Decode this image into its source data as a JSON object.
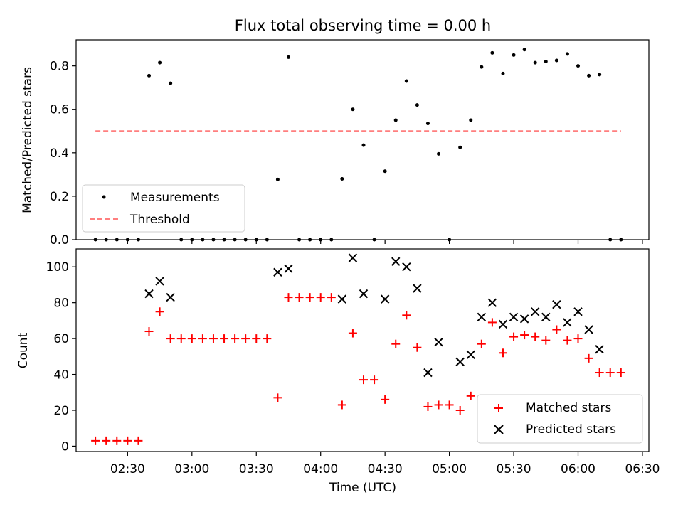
{
  "figure_title": "Flux total observing time = 0.00 h",
  "x_tick_labels": [
    "02:30",
    "03:00",
    "03:30",
    "04:00",
    "04:30",
    "05:00",
    "05:30",
    "06:00",
    "06:30"
  ],
  "chart_data": [
    {
      "type": "scatter",
      "title": "Flux total observing time = 0.00 h",
      "xlabel": "",
      "ylabel": "Matched/Predicted stars",
      "xlim": [
        "02:06",
        "06:33"
      ],
      "ylim": [
        0,
        0.92
      ],
      "yticks": [
        "0.0",
        "0.2",
        "0.4",
        "0.6",
        "0.8"
      ],
      "legend_position": "lower-left",
      "series": [
        {
          "name": "Measurements",
          "kind": "scatter",
          "color": "#000000",
          "x": [
            "02:15",
            "02:20",
            "02:25",
            "02:30",
            "02:35",
            "02:40",
            "02:45",
            "02:50",
            "02:55",
            "03:00",
            "03:05",
            "03:10",
            "03:15",
            "03:20",
            "03:25",
            "03:30",
            "03:35",
            "03:40",
            "03:45",
            "03:50",
            "03:55",
            "04:00",
            "04:05",
            "04:10",
            "04:15",
            "04:20",
            "04:25",
            "04:30",
            "04:35",
            "04:40",
            "04:45",
            "04:50",
            "04:55",
            "05:00",
            "05:05",
            "05:10",
            "05:15",
            "05:20",
            "05:25",
            "05:30",
            "05:35",
            "05:40",
            "05:45",
            "05:50",
            "05:55",
            "06:00",
            "06:05",
            "06:10",
            "06:15",
            "06:20"
          ],
          "y": [
            0,
            0,
            0,
            0,
            0,
            0.755,
            0.815,
            0.72,
            0,
            0,
            0,
            0,
            0,
            0,
            0,
            0,
            0,
            0.277,
            0.84,
            0,
            0,
            0,
            0,
            0.28,
            0.6,
            0.435,
            0,
            0.315,
            0.55,
            0.73,
            0.62,
            0.535,
            0.395,
            0,
            0.425,
            0.55,
            0.795,
            0.86,
            0.765,
            0.85,
            0.875,
            0.815,
            0.82,
            0.825,
            0.855,
            0.8,
            0.755,
            0.76,
            0,
            0
          ]
        },
        {
          "name": "Threshold",
          "kind": "line",
          "style": "dashed",
          "color": "#ff7f7f",
          "x": [
            "02:15",
            "06:20"
          ],
          "y": [
            0.5,
            0.5
          ]
        }
      ]
    },
    {
      "type": "scatter",
      "xlabel": "Time (UTC)",
      "ylabel": "Count",
      "xlim": [
        "02:06",
        "06:33"
      ],
      "ylim": [
        -3,
        110
      ],
      "yticks": [
        "0",
        "20",
        "40",
        "60",
        "80",
        "100"
      ],
      "xticks": [
        "02:30",
        "03:00",
        "03:30",
        "04:00",
        "04:30",
        "05:00",
        "05:30",
        "06:00",
        "06:30"
      ],
      "legend_position": "lower-right",
      "series": [
        {
          "name": "Matched stars",
          "marker": "+",
          "color": "#ff0000",
          "x": [
            "02:15",
            "02:20",
            "02:25",
            "02:30",
            "02:35",
            "02:40",
            "02:45",
            "02:50",
            "02:55",
            "03:00",
            "03:05",
            "03:10",
            "03:15",
            "03:20",
            "03:25",
            "03:30",
            "03:35",
            "03:40",
            "03:45",
            "03:50",
            "03:55",
            "04:00",
            "04:05",
            "04:10",
            "04:15",
            "04:20",
            "04:25",
            "04:30",
            "04:35",
            "04:40",
            "04:45",
            "04:50",
            "04:55",
            "05:00",
            "05:05",
            "05:10",
            "05:15",
            "05:20",
            "05:25",
            "05:30",
            "05:35",
            "05:40",
            "05:45",
            "05:50",
            "05:55",
            "06:00",
            "06:05",
            "06:10",
            "06:15",
            "06:20"
          ],
          "y": [
            3,
            3,
            3,
            3,
            3,
            64,
            75,
            60,
            60,
            60,
            60,
            60,
            60,
            60,
            60,
            60,
            60,
            27,
            83,
            83,
            83,
            83,
            83,
            23,
            63,
            37,
            37,
            26,
            57,
            73,
            55,
            22,
            23,
            23,
            20,
            28,
            57,
            69,
            52,
            61,
            62,
            61,
            59,
            65,
            59,
            60,
            49,
            41,
            41,
            41
          ]
        },
        {
          "name": "Predicted stars",
          "marker": "x",
          "color": "#000000",
          "x": [
            "02:40",
            "02:45",
            "02:50",
            "03:40",
            "03:45",
            "04:10",
            "04:15",
            "04:20",
            "04:30",
            "04:35",
            "04:40",
            "04:45",
            "04:50",
            "04:55",
            "05:05",
            "05:10",
            "05:15",
            "05:20",
            "05:25",
            "05:30",
            "05:35",
            "05:40",
            "05:45",
            "05:50",
            "05:55",
            "06:00",
            "06:05",
            "06:10"
          ],
          "y": [
            85,
            92,
            83,
            97,
            99,
            82,
            105,
            85,
            82,
            103,
            100,
            88,
            41,
            58,
            47,
            51,
            72,
            80,
            68,
            72,
            71,
            75,
            72,
            79,
            69,
            75,
            65,
            54
          ]
        }
      ]
    }
  ]
}
